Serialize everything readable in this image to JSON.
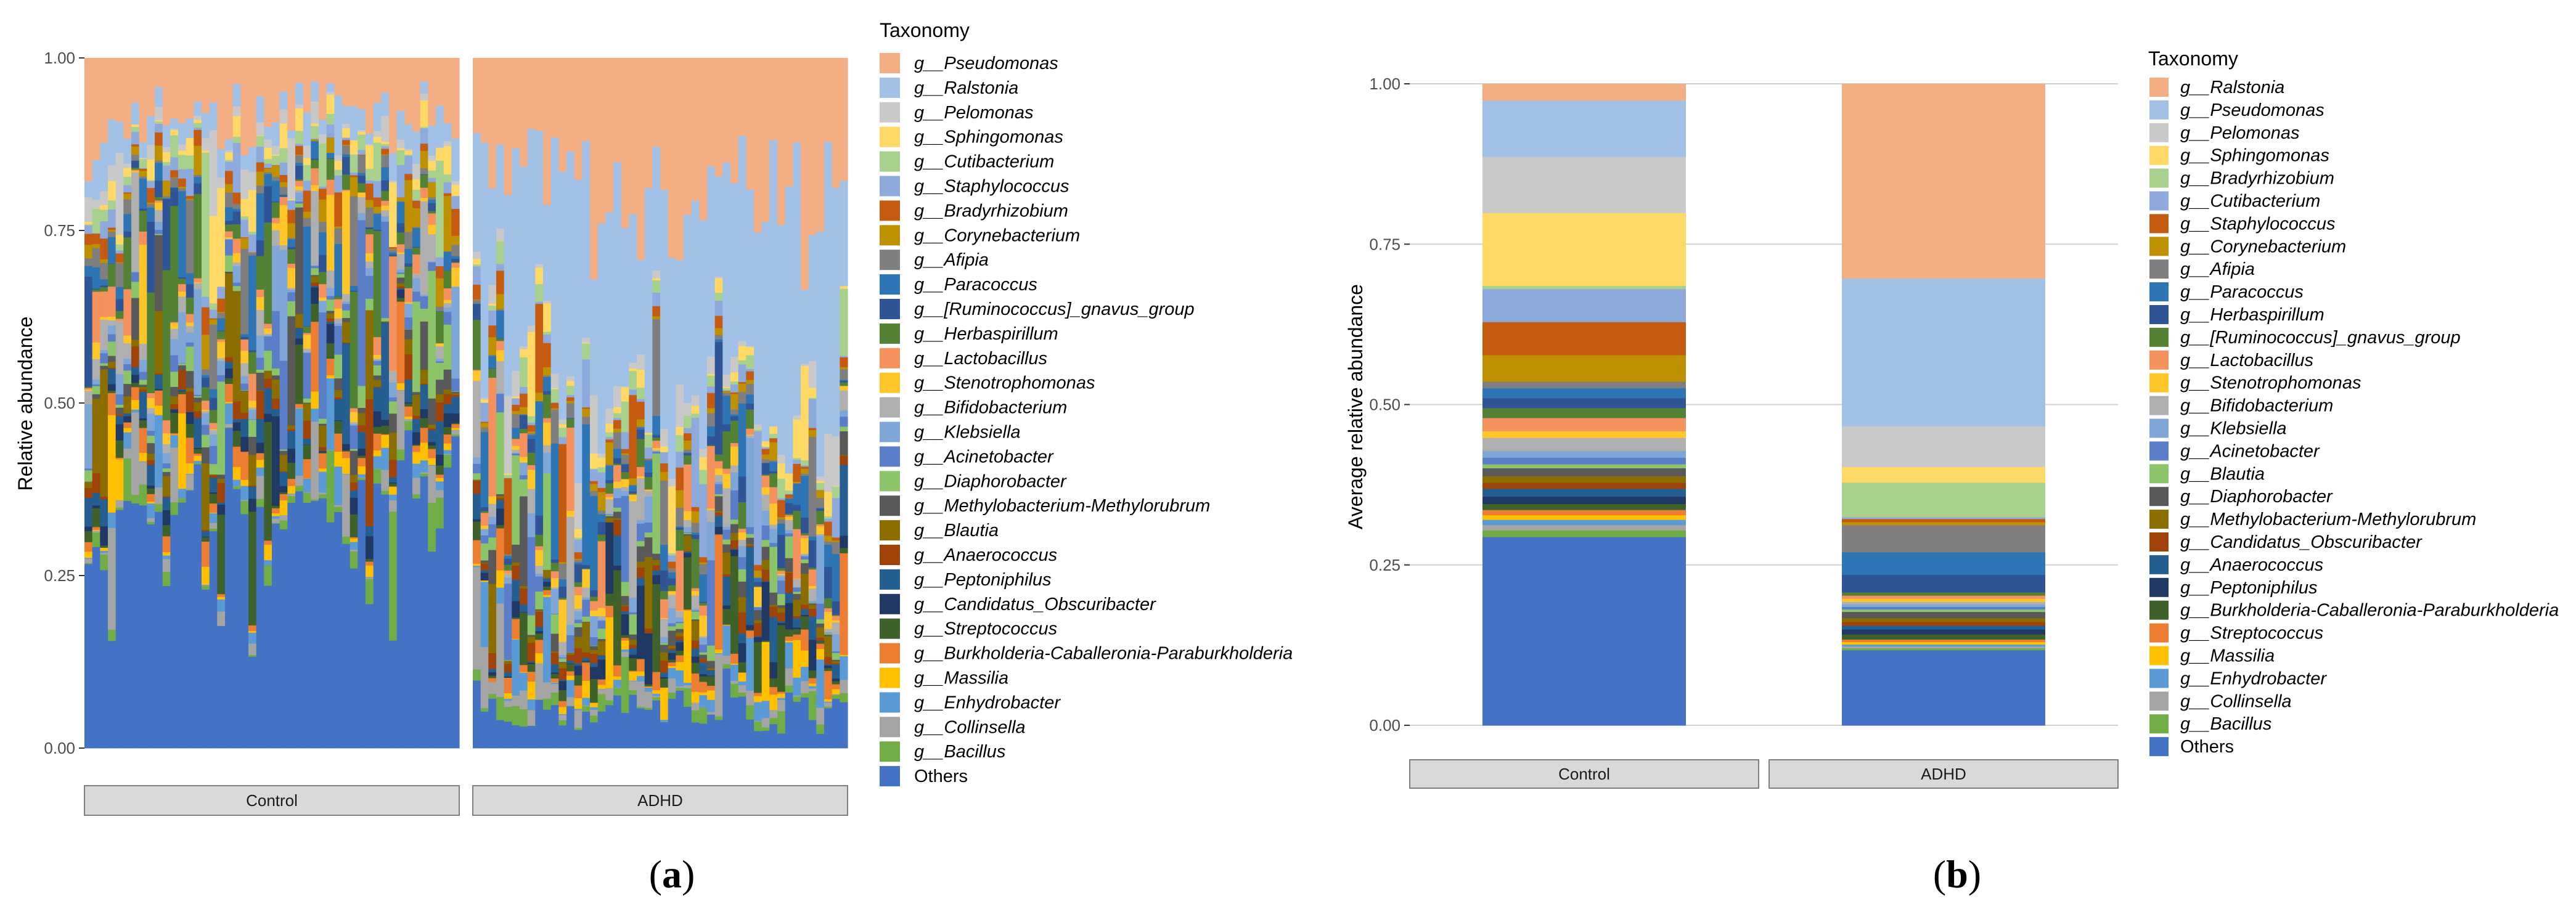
{
  "figure_labels": {
    "a": "a",
    "b": "b"
  },
  "chart_data": [
    {
      "id": "a",
      "type": "bar",
      "subtype": "stacked-per-sample",
      "ylabel": "Relative abundance",
      "ylim": [
        0,
        1
      ],
      "yticks": [
        "0.00",
        "0.25",
        "0.50",
        "0.75",
        "1.00"
      ],
      "grid": false,
      "legend_title": "Taxonomy",
      "groups": [
        {
          "label": "Control",
          "n_samples": 48,
          "seed": 11,
          "profile": "control"
        },
        {
          "label": "ADHD",
          "n_samples": 48,
          "seed": 29,
          "profile": "adhd"
        }
      ],
      "group_profiles": {
        "control": {
          "others": 0.31,
          "pseudomonas": 0.09,
          "ralstonia": 0.04
        },
        "adhd": {
          "others": 0.07,
          "pseudomonas": 0.25,
          "ralstonia": 0.38
        }
      },
      "legend": [
        {
          "label": "g__Pseudomonas",
          "color": "#F4AE84",
          "italic": true
        },
        {
          "label": "g__Ralstonia",
          "color": "#A1C2E6",
          "italic": true
        },
        {
          "label": "g__Pelomonas",
          "color": "#C9C9C9",
          "italic": true
        },
        {
          "label": "g__Sphingomonas",
          "color": "#FFD966",
          "italic": true
        },
        {
          "label": "g__Cutibacterium",
          "color": "#A9D18E",
          "italic": true
        },
        {
          "label": "g__Staphylococcus",
          "color": "#8EA9DB",
          "italic": true
        },
        {
          "label": "g__Bradyrhizobium",
          "color": "#C55A11",
          "italic": true
        },
        {
          "label": "g__Corynebacterium",
          "color": "#BF9000",
          "italic": true
        },
        {
          "label": "g__Afipia",
          "color": "#7F7F7F",
          "italic": true
        },
        {
          "label": "g__Paracoccus",
          "color": "#2E75B6",
          "italic": true
        },
        {
          "label": "g__[Ruminococcus]_gnavus_group",
          "color": "#2F5597",
          "italic": true
        },
        {
          "label": "g__Herbaspirillum",
          "color": "#548235",
          "italic": true
        },
        {
          "label": "g__Lactobacillus",
          "color": "#F4915C",
          "italic": true
        },
        {
          "label": "g__Stenotrophomonas",
          "color": "#FFC629",
          "italic": true
        },
        {
          "label": "g__Bifidobacterium",
          "color": "#AFAFAF",
          "italic": true
        },
        {
          "label": "g__Klebsiella",
          "color": "#7EA7D8",
          "italic": true
        },
        {
          "label": "g__Acinetobacter",
          "color": "#5B7EC9",
          "italic": true
        },
        {
          "label": "g__Diaphorobacter",
          "color": "#8CC46A",
          "italic": true
        },
        {
          "label": "g__Methylobacterium-Methylorubrum",
          "color": "#595959",
          "italic": true
        },
        {
          "label": "g__Blautia",
          "color": "#8C6D00",
          "italic": true
        },
        {
          "label": "g__Anaerococcus",
          "color": "#A0430A",
          "italic": true
        },
        {
          "label": "g__Peptoniphilus",
          "color": "#255E91",
          "italic": true
        },
        {
          "label": "g__Candidatus_Obscuribacter",
          "color": "#203864",
          "italic": true
        },
        {
          "label": "g__Streptococcus",
          "color": "#3E6229",
          "italic": true
        },
        {
          "label": "g__Burkholderia-Caballeronia-Paraburkholderia",
          "color": "#ED7D31",
          "italic": true
        },
        {
          "label": "g__Massilia",
          "color": "#FFC000",
          "italic": true
        },
        {
          "label": "g__Enhydrobacter",
          "color": "#5B9BD5",
          "italic": true
        },
        {
          "label": "g__Collinsella",
          "color": "#A5A5A5",
          "italic": true
        },
        {
          "label": "g__Bacillus",
          "color": "#70AD47",
          "italic": true
        },
        {
          "label": "Others",
          "color": "#4472C4",
          "italic": false
        }
      ]
    },
    {
      "id": "b",
      "type": "bar",
      "subtype": "stacked-average",
      "ylabel": "Average relative abundance",
      "ylim": [
        0,
        1
      ],
      "yticks": [
        "0.00",
        "0.25",
        "0.50",
        "0.75",
        "1.00"
      ],
      "grid": true,
      "legend_title": "Taxonomy",
      "categories": [
        "Control",
        "ADHD"
      ],
      "series": [
        {
          "name": "Others",
          "color": "#4472C4",
          "italic": false,
          "values": [
            0.285,
            0.12
          ]
        },
        {
          "name": "g__Bacillus",
          "color": "#70AD47",
          "italic": true,
          "values": [
            0.01,
            0.003
          ]
        },
        {
          "name": "g__Collinsella",
          "color": "#A5A5A5",
          "italic": true,
          "values": [
            0.008,
            0.003
          ]
        },
        {
          "name": "g__Enhydrobacter",
          "color": "#5B9BD5",
          "italic": true,
          "values": [
            0.008,
            0.003
          ]
        },
        {
          "name": "g__Massilia",
          "color": "#FFC000",
          "italic": true,
          "values": [
            0.007,
            0.004
          ]
        },
        {
          "name": "g__Streptococcus",
          "color": "#ED7D31",
          "italic": true,
          "values": [
            0.008,
            0.004
          ]
        },
        {
          "name": "g__Burkholderia-Caballeronia-Paraburkholderia",
          "color": "#3E6229",
          "italic": true,
          "values": [
            0.009,
            0.008
          ]
        },
        {
          "name": "g__Peptoniphilus",
          "color": "#203864",
          "italic": true,
          "values": [
            0.011,
            0.008
          ]
        },
        {
          "name": "g__Anaerococcus",
          "color": "#255E91",
          "italic": true,
          "values": [
            0.012,
            0.006
          ]
        },
        {
          "name": "g__Candidatus_Obscuribacter",
          "color": "#A0430A",
          "italic": true,
          "values": [
            0.009,
            0.006
          ]
        },
        {
          "name": "g__Methylobacterium-Methylorubrum",
          "color": "#8C6D00",
          "italic": true,
          "values": [
            0.01,
            0.006
          ]
        },
        {
          "name": "g__Diaphorobacter",
          "color": "#595959",
          "italic": true,
          "values": [
            0.012,
            0.01
          ]
        },
        {
          "name": "g__Blautia",
          "color": "#8CC46A",
          "italic": true,
          "values": [
            0.006,
            0.004
          ]
        },
        {
          "name": "g__Acinetobacter",
          "color": "#5B7EC9",
          "italic": true,
          "values": [
            0.01,
            0.004
          ]
        },
        {
          "name": "g__Klebsiella",
          "color": "#7EA7D8",
          "italic": true,
          "values": [
            0.01,
            0.004
          ]
        },
        {
          "name": "g__Bifidobacterium",
          "color": "#AFAFAF",
          "italic": true,
          "values": [
            0.02,
            0.004
          ]
        },
        {
          "name": "g__Stenotrophomonas",
          "color": "#FFC629",
          "italic": true,
          "values": [
            0.01,
            0.005
          ]
        },
        {
          "name": "g__Lactobacillus",
          "color": "#F4915C",
          "italic": true,
          "values": [
            0.02,
            0.005
          ]
        },
        {
          "name": "g__[Ruminococcus]_gnavus_group",
          "color": "#548235",
          "italic": true,
          "values": [
            0.015,
            0.005
          ]
        },
        {
          "name": "g__Herbaspirillum",
          "color": "#2F5597",
          "italic": true,
          "values": [
            0.015,
            0.028
          ]
        },
        {
          "name": "g__Paracoccus",
          "color": "#2E75B6",
          "italic": true,
          "values": [
            0.015,
            0.036
          ]
        },
        {
          "name": "g__Afipia",
          "color": "#7F7F7F",
          "italic": true,
          "values": [
            0.01,
            0.043
          ]
        },
        {
          "name": "g__Corynebacterium",
          "color": "#BF9000",
          "italic": true,
          "values": [
            0.04,
            0.005
          ]
        },
        {
          "name": "g__Staphylococcus",
          "color": "#C55A11",
          "italic": true,
          "values": [
            0.05,
            0.005
          ]
        },
        {
          "name": "g__Cutibacterium",
          "color": "#8EA9DB",
          "italic": true,
          "values": [
            0.05,
            0.003
          ]
        },
        {
          "name": "g__Bradyrhizobium",
          "color": "#A9D18E",
          "italic": true,
          "values": [
            0.005,
            0.055
          ]
        },
        {
          "name": "g__Sphingomonas",
          "color": "#FFD966",
          "italic": true,
          "values": [
            0.11,
            0.025
          ]
        },
        {
          "name": "g__Pelomonas",
          "color": "#C9C9C9",
          "italic": true,
          "values": [
            0.085,
            0.065
          ]
        },
        {
          "name": "g__Pseudomonas",
          "color": "#A1C2E6",
          "italic": true,
          "values": [
            0.085,
            0.235
          ]
        },
        {
          "name": "g__Ralstonia",
          "color": "#F4AE84",
          "italic": true,
          "values": [
            0.025,
            0.31
          ]
        }
      ],
      "legend": [
        {
          "label": "g__Ralstonia",
          "color": "#F4AE84",
          "italic": true
        },
        {
          "label": "g__Pseudomonas",
          "color": "#A1C2E6",
          "italic": true
        },
        {
          "label": "g__Pelomonas",
          "color": "#C9C9C9",
          "italic": true
        },
        {
          "label": "g__Sphingomonas",
          "color": "#FFD966",
          "italic": true
        },
        {
          "label": "g__Bradyrhizobium",
          "color": "#A9D18E",
          "italic": true
        },
        {
          "label": "g__Cutibacterium",
          "color": "#8EA9DB",
          "italic": true
        },
        {
          "label": "g__Staphylococcus",
          "color": "#C55A11",
          "italic": true
        },
        {
          "label": "g__Corynebacterium",
          "color": "#BF9000",
          "italic": true
        },
        {
          "label": "g__Afipia",
          "color": "#7F7F7F",
          "italic": true
        },
        {
          "label": "g__Paracoccus",
          "color": "#2E75B6",
          "italic": true
        },
        {
          "label": "g__Herbaspirillum",
          "color": "#2F5597",
          "italic": true
        },
        {
          "label": "g__[Ruminococcus]_gnavus_group",
          "color": "#548235",
          "italic": true
        },
        {
          "label": "g__Lactobacillus",
          "color": "#F4915C",
          "italic": true
        },
        {
          "label": "g__Stenotrophomonas",
          "color": "#FFC629",
          "italic": true
        },
        {
          "label": "g__Bifidobacterium",
          "color": "#AFAFAF",
          "italic": true
        },
        {
          "label": "g__Klebsiella",
          "color": "#7EA7D8",
          "italic": true
        },
        {
          "label": "g__Acinetobacter",
          "color": "#5B7EC9",
          "italic": true
        },
        {
          "label": "g__Blautia",
          "color": "#8CC46A",
          "italic": true
        },
        {
          "label": "g__Diaphorobacter",
          "color": "#595959",
          "italic": true
        },
        {
          "label": "g__Methylobacterium-Methylorubrum",
          "color": "#8C6D00",
          "italic": true
        },
        {
          "label": "g__Candidatus_Obscuribacter",
          "color": "#A0430A",
          "italic": true
        },
        {
          "label": "g__Anaerococcus",
          "color": "#255E91",
          "italic": true
        },
        {
          "label": "g__Peptoniphilus",
          "color": "#203864",
          "italic": true
        },
        {
          "label": "g__Burkholderia-Caballeronia-Paraburkholderia",
          "color": "#3E6229",
          "italic": true
        },
        {
          "label": "g__Streptococcus",
          "color": "#ED7D31",
          "italic": true
        },
        {
          "label": "g__Massilia",
          "color": "#FFC000",
          "italic": true
        },
        {
          "label": "g__Enhydrobacter",
          "color": "#5B9BD5",
          "italic": true
        },
        {
          "label": "g__Collinsella",
          "color": "#A5A5A5",
          "italic": true
        },
        {
          "label": "g__Bacillus",
          "color": "#70AD47",
          "italic": true
        },
        {
          "label": "Others",
          "color": "#4472C4",
          "italic": false
        }
      ]
    }
  ]
}
